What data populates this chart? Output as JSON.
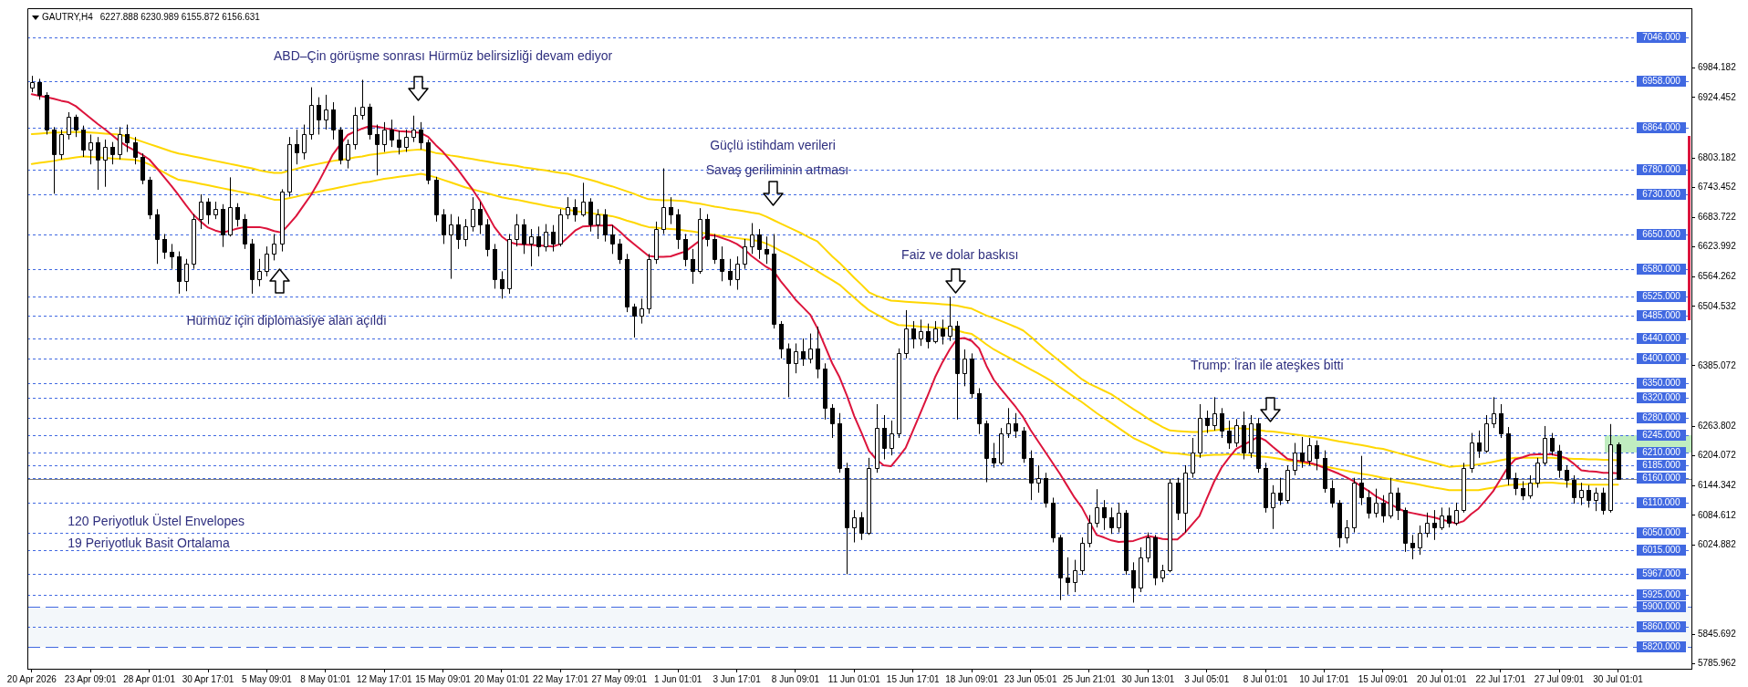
{
  "chart_data": {
    "type": "candlestick",
    "title": "GAUTRY,H4",
    "subtitle": "6227.888 6230.989 6155.872 6156.631",
    "categories": [
      "20 Apr 2026",
      null,
      null,
      null,
      null,
      null,
      null,
      null,
      "23 Apr 09:01",
      null,
      null,
      null,
      null,
      null,
      null,
      null,
      "28 Apr 01:01",
      null,
      null,
      null,
      null,
      null,
      null,
      null,
      "30 Apr 17:01",
      null,
      null,
      null,
      null,
      null,
      null,
      null,
      "5 May 09:01",
      null,
      null,
      null,
      null,
      null,
      null,
      null,
      "8 May 01:01",
      null,
      null,
      null,
      null,
      null,
      null,
      null,
      "12 May 17:01",
      null,
      null,
      null,
      null,
      null,
      null,
      null,
      "15 May 09:01",
      null,
      null,
      null,
      null,
      null,
      null,
      null,
      "20 May 01:01",
      null,
      null,
      null,
      null,
      null,
      null,
      null,
      "22 May 17:01",
      null,
      null,
      null,
      null,
      null,
      null,
      null,
      "27 May 09:01",
      null,
      null,
      null,
      null,
      null,
      null,
      null,
      "1 Jun 01:01",
      null,
      null,
      null,
      null,
      null,
      null,
      null,
      "3 Jun 17:01",
      null,
      null,
      null,
      null,
      null,
      null,
      null,
      "8 Jun 09:01",
      null,
      null,
      null,
      null,
      null,
      null,
      null,
      "11 Jun 01:01",
      null,
      null,
      null,
      null,
      null,
      null,
      null,
      "15 Jun 17:01",
      null,
      null,
      null,
      null,
      null,
      null,
      null,
      "18 Jun 09:01",
      null,
      null,
      null,
      null,
      null,
      null,
      null,
      "23 Jun 05:01",
      null,
      null,
      null,
      null,
      null,
      null,
      null,
      "25 Jun 21:01",
      null,
      null,
      null,
      null,
      null,
      null,
      null,
      "30 Jun 13:01",
      null,
      null,
      null,
      null,
      null,
      null,
      null,
      "3 Jul 05:01",
      null,
      null,
      null,
      null,
      null,
      null,
      null,
      "8 Jul 01:01",
      null,
      null,
      null,
      null,
      null,
      null,
      null,
      "10 Jul 17:01",
      null,
      null,
      null,
      null,
      null,
      null,
      null,
      "15 Jul 09:01",
      null,
      null,
      null,
      null,
      null,
      null,
      null,
      "20 Jul 01:01",
      null,
      null,
      null,
      null,
      null,
      null,
      null,
      "22 Jul 17:01",
      null,
      null,
      null,
      null,
      null,
      null,
      null,
      "27 Jul 09:01",
      null,
      null,
      null,
      null,
      null,
      null,
      null,
      "30 Jul 01:01"
    ],
    "ohlc": [
      [
        6945,
        6968,
        6935,
        6955
      ],
      [
        6955,
        6962,
        6920,
        6930
      ],
      [
        6930,
        6935,
        6850,
        6860
      ],
      [
        6860,
        6865,
        6731,
        6810
      ],
      [
        6810,
        6860,
        6800,
        6850
      ],
      [
        6850,
        6895,
        6840,
        6885
      ],
      [
        6885,
        6890,
        6845,
        6860
      ],
      [
        6860,
        6868,
        6805,
        6820
      ],
      [
        6820,
        6850,
        6790,
        6835
      ],
      [
        6835,
        6845,
        6739,
        6800
      ],
      [
        6800,
        6840,
        6745,
        6825
      ],
      [
        6825,
        6835,
        6790,
        6810
      ],
      [
        6810,
        6865,
        6800,
        6850
      ],
      [
        6850,
        6870,
        6815,
        6835
      ],
      [
        6835,
        6845,
        6790,
        6805
      ],
      [
        6805,
        6812,
        6750,
        6760
      ],
      [
        6760,
        6765,
        6680,
        6690
      ],
      [
        6690,
        6700,
        6590,
        6640
      ],
      [
        6640,
        6650,
        6600,
        6615
      ],
      [
        6615,
        6630,
        6580,
        6605
      ],
      [
        6605,
        6615,
        6530,
        6555
      ],
      [
        6555,
        6600,
        6535,
        6590
      ],
      [
        6590,
        6690,
        6580,
        6680
      ],
      [
        6680,
        6730,
        6660,
        6715
      ],
      [
        6715,
        6722,
        6670,
        6690
      ],
      [
        6690,
        6715,
        6680,
        6700
      ],
      [
        6700,
        6710,
        6624,
        6650
      ],
      [
        6650,
        6764,
        6645,
        6705
      ],
      [
        6705,
        6712,
        6665,
        6680
      ],
      [
        6680,
        6690,
        6620,
        6630
      ],
      [
        6630,
        6640,
        6530,
        6560
      ],
      [
        6560,
        6600,
        6545,
        6575
      ],
      [
        6575,
        6625,
        6565,
        6610
      ],
      [
        6610,
        6650,
        6597,
        6630
      ],
      [
        6630,
        6740,
        6615,
        6735
      ],
      [
        6735,
        6845,
        6725,
        6830
      ],
      [
        6830,
        6860,
        6790,
        6815
      ],
      [
        6815,
        6870,
        6800,
        6850
      ],
      [
        6850,
        6945,
        6840,
        6910
      ],
      [
        6910,
        6925,
        6850,
        6880
      ],
      [
        6880,
        6930,
        6860,
        6900
      ],
      [
        6900,
        6915,
        6840,
        6860
      ],
      [
        6860,
        6865,
        6790,
        6800
      ],
      [
        6800,
        6840,
        6782,
        6830
      ],
      [
        6830,
        6905,
        6820,
        6890
      ],
      [
        6890,
        6960,
        6880,
        6905
      ],
      [
        6905,
        6912,
        6840,
        6850
      ],
      [
        6850,
        6870,
        6768,
        6830
      ],
      [
        6830,
        6875,
        6815,
        6860
      ],
      [
        6860,
        6880,
        6825,
        6840
      ],
      [
        6840,
        6858,
        6810,
        6825
      ],
      [
        6825,
        6860,
        6815,
        6845
      ],
      [
        6845,
        6888,
        6835,
        6860
      ],
      [
        6860,
        6875,
        6820,
        6835
      ],
      [
        6835,
        6840,
        6750,
        6760
      ],
      [
        6760,
        6765,
        6675,
        6690
      ],
      [
        6690,
        6700,
        6630,
        6650
      ],
      [
        6650,
        6690,
        6560,
        6670
      ],
      [
        6670,
        6685,
        6620,
        6640
      ],
      [
        6640,
        6680,
        6625,
        6665
      ],
      [
        6665,
        6724,
        6655,
        6700
      ],
      [
        6700,
        6715,
        6650,
        6670
      ],
      [
        6670,
        6680,
        6605,
        6620
      ],
      [
        6620,
        6630,
        6540,
        6560
      ],
      [
        6560,
        6575,
        6520,
        6540
      ],
      [
        6540,
        6650,
        6530,
        6640
      ],
      [
        6640,
        6690,
        6625,
        6670
      ],
      [
        6670,
        6680,
        6610,
        6630
      ],
      [
        6630,
        6660,
        6585,
        6645
      ],
      [
        6645,
        6665,
        6605,
        6625
      ],
      [
        6625,
        6670,
        6615,
        6655
      ],
      [
        6655,
        6668,
        6615,
        6630
      ],
      [
        6630,
        6700,
        6625,
        6690
      ],
      [
        6690,
        6724,
        6680,
        6705
      ],
      [
        6705,
        6720,
        6675,
        6690
      ],
      [
        6690,
        6753,
        6685,
        6715
      ],
      [
        6715,
        6722,
        6655,
        6670
      ],
      [
        6670,
        6700,
        6640,
        6690
      ],
      [
        6690,
        6700,
        6635,
        6650
      ],
      [
        6650,
        6668,
        6610,
        6630
      ],
      [
        6630,
        6640,
        6590,
        6600
      ],
      [
        6600,
        6610,
        6493,
        6505
      ],
      [
        6505,
        6510,
        6442,
        6485
      ],
      [
        6485,
        6520,
        6470,
        6500
      ],
      [
        6500,
        6610,
        6490,
        6600
      ],
      [
        6600,
        6675,
        6590,
        6660
      ],
      [
        6660,
        6782,
        6650,
        6705
      ],
      [
        6705,
        6724,
        6670,
        6690
      ],
      [
        6690,
        6700,
        6620,
        6640
      ],
      [
        6640,
        6650,
        6585,
        6600
      ],
      [
        6600,
        6620,
        6550,
        6575
      ],
      [
        6575,
        6702,
        6570,
        6680
      ],
      [
        6680,
        6690,
        6625,
        6640
      ],
      [
        6640,
        6650,
        6590,
        6600
      ],
      [
        6600,
        6625,
        6555,
        6575
      ],
      [
        6575,
        6600,
        6546,
        6560
      ],
      [
        6560,
        6605,
        6538,
        6590
      ],
      [
        6590,
        6640,
        6580,
        6625
      ],
      [
        6625,
        6672,
        6610,
        6650
      ],
      [
        6650,
        6660,
        6600,
        6620
      ],
      [
        6620,
        6645,
        6590,
        6610
      ],
      [
        6610,
        6650,
        6460,
        6470
      ],
      [
        6470,
        6475,
        6400,
        6420
      ],
      [
        6420,
        6430,
        6322,
        6390
      ],
      [
        6390,
        6430,
        6370,
        6415
      ],
      [
        6415,
        6440,
        6385,
        6400
      ],
      [
        6400,
        6450,
        6390,
        6420
      ],
      [
        6420,
        6464,
        6360,
        6380
      ],
      [
        6380,
        6390,
        6277,
        6300
      ],
      [
        6300,
        6308,
        6240,
        6270
      ],
      [
        6270,
        6290,
        6170,
        6180
      ],
      [
        6180,
        6190,
        5966,
        6060
      ],
      [
        6060,
        6095,
        6030,
        6080
      ],
      [
        6080,
        6091,
        6035,
        6050
      ],
      [
        6050,
        6200,
        6045,
        6180
      ],
      [
        6180,
        6308,
        6170,
        6260
      ],
      [
        6260,
        6286,
        6197,
        6220
      ],
      [
        6220,
        6275,
        6205,
        6250
      ],
      [
        6250,
        6420,
        6240,
        6410
      ],
      [
        6410,
        6497,
        6400,
        6460
      ],
      [
        6460,
        6475,
        6420,
        6440
      ],
      [
        6440,
        6478,
        6425,
        6455
      ],
      [
        6455,
        6470,
        6420,
        6435
      ],
      [
        6435,
        6475,
        6430,
        6460
      ],
      [
        6460,
        6478,
        6428,
        6445
      ],
      [
        6445,
        6524,
        6435,
        6465
      ],
      [
        6465,
        6475,
        6277,
        6370
      ],
      [
        6370,
        6418,
        6344,
        6400
      ],
      [
        6400,
        6410,
        6320,
        6330
      ],
      [
        6330,
        6340,
        6248,
        6270
      ],
      [
        6270,
        6275,
        6151,
        6200
      ],
      [
        6200,
        6230,
        6180,
        6190
      ],
      [
        6190,
        6260,
        6185,
        6250
      ],
      [
        6250,
        6300,
        6240,
        6270
      ],
      [
        6270,
        6290,
        6240,
        6255
      ],
      [
        6255,
        6262,
        6190,
        6200
      ],
      [
        6200,
        6215,
        6115,
        6150
      ],
      [
        6150,
        6185,
        6130,
        6160
      ],
      [
        6160,
        6170,
        6100,
        6110
      ],
      [
        6110,
        6120,
        6030,
        6040
      ],
      [
        6040,
        6045,
        5914,
        5960
      ],
      [
        5960,
        6000,
        5925,
        5950
      ],
      [
        5950,
        5995,
        5930,
        5975
      ],
      [
        5975,
        6040,
        5965,
        6030
      ],
      [
        6030,
        6085,
        6020,
        6070
      ],
      [
        6070,
        6137,
        6060,
        6100
      ],
      [
        6100,
        6115,
        6055,
        6080
      ],
      [
        6080,
        6100,
        6047,
        6060
      ],
      [
        6060,
        6110,
        6050,
        6090
      ],
      [
        6090,
        6095,
        5965,
        5975
      ],
      [
        5975,
        5990,
        5909,
        5940
      ],
      [
        5940,
        6020,
        5930,
        6000
      ],
      [
        6000,
        6050,
        5990,
        6040
      ],
      [
        6040,
        6045,
        5944,
        5960
      ],
      [
        5960,
        5985,
        5950,
        5975
      ],
      [
        5975,
        6158,
        5970,
        6150
      ],
      [
        6150,
        6160,
        6075,
        6090
      ],
      [
        6090,
        6185,
        6050,
        6170
      ],
      [
        6170,
        6240,
        6160,
        6210
      ],
      [
        6210,
        6308,
        6200,
        6280
      ],
      [
        6280,
        6295,
        6250,
        6265
      ],
      [
        6265,
        6322,
        6255,
        6290
      ],
      [
        6290,
        6300,
        6240,
        6255
      ],
      [
        6255,
        6275,
        6218,
        6230
      ],
      [
        6230,
        6278,
        6222,
        6265
      ],
      [
        6265,
        6293,
        6197,
        6210
      ],
      [
        6210,
        6286,
        6200,
        6270
      ],
      [
        6270,
        6280,
        6170,
        6180
      ],
      [
        6180,
        6190,
        6090,
        6100
      ],
      [
        6100,
        6145,
        6057,
        6130
      ],
      [
        6130,
        6160,
        6105,
        6115
      ],
      [
        6115,
        6185,
        6108,
        6175
      ],
      [
        6175,
        6230,
        6165,
        6210
      ],
      [
        6210,
        6242,
        6180,
        6195
      ],
      [
        6195,
        6240,
        6185,
        6225
      ],
      [
        6225,
        6235,
        6175,
        6200
      ],
      [
        6200,
        6215,
        6130,
        6140
      ],
      [
        6140,
        6155,
        6100,
        6110
      ],
      [
        6110,
        6115,
        6020,
        6040
      ],
      [
        6040,
        6075,
        6028,
        6060
      ],
      [
        6060,
        6160,
        6050,
        6150
      ],
      [
        6150,
        6204,
        6105,
        6120
      ],
      [
        6120,
        6135,
        6078,
        6090
      ],
      [
        6090,
        6138,
        6080,
        6110
      ],
      [
        6110,
        6125,
        6070,
        6085
      ],
      [
        6085,
        6160,
        6078,
        6130
      ],
      [
        6130,
        6140,
        6075,
        6095
      ],
      [
        6095,
        6100,
        6011,
        6030
      ],
      [
        6030,
        6045,
        5996,
        6020
      ],
      [
        6020,
        6064,
        6005,
        6050
      ],
      [
        6050,
        6090,
        6040,
        6070
      ],
      [
        6070,
        6095,
        6035,
        6060
      ],
      [
        6060,
        6100,
        6055,
        6085
      ],
      [
        6085,
        6100,
        6060,
        6070
      ],
      [
        6070,
        6110,
        6064,
        6095
      ],
      [
        6095,
        6190,
        6090,
        6180
      ],
      [
        6180,
        6250,
        6170,
        6230
      ],
      [
        6230,
        6255,
        6200,
        6215
      ],
      [
        6215,
        6286,
        6210,
        6270
      ],
      [
        6270,
        6322,
        6260,
        6290
      ],
      [
        6290,
        6308,
        6240,
        6250
      ],
      [
        6250,
        6262,
        6145,
        6160
      ],
      [
        6160,
        6170,
        6125,
        6140
      ],
      [
        6140,
        6153,
        6115,
        6125
      ],
      [
        6125,
        6165,
        6118,
        6150
      ],
      [
        6150,
        6200,
        6140,
        6190
      ],
      [
        6190,
        6264,
        6185,
        6240
      ],
      [
        6240,
        6250,
        6205,
        6215
      ],
      [
        6215,
        6226,
        6160,
        6175
      ],
      [
        6175,
        6185,
        6140,
        6155
      ],
      [
        6155,
        6165,
        6108,
        6120
      ],
      [
        6120,
        6150,
        6105,
        6135
      ],
      [
        6135,
        6145,
        6100,
        6115
      ],
      [
        6115,
        6140,
        6093,
        6130
      ],
      [
        6130,
        6140,
        6086,
        6095
      ],
      [
        6095,
        6268,
        6090,
        6228
      ],
      [
        6227.888,
        6230.989,
        6155.872,
        6156.631
      ]
    ],
    "colors": [
      "#ffffff",
      "#000000",
      "#000000",
      "#000000",
      "#ffffff",
      "#ffffff",
      "#000000",
      "#000000",
      "#ffffff",
      "#000000",
      "#ffffff",
      "#000000",
      "#ffffff",
      "#000000",
      "#000000",
      "#000000",
      "#000000",
      "#000000",
      "#000000",
      "#000000",
      "#000000",
      "#ffffff",
      "#ffffff",
      "#ffffff",
      "#000000",
      "#ffffff",
      "#000000",
      "#ffffff",
      "#000000",
      "#000000",
      "#000000",
      "#ffffff",
      "#ffffff",
      "#ffffff",
      "#ffffff",
      "#ffffff",
      "#000000",
      "#ffffff",
      "#ffffff",
      "#000000",
      "#ffffff",
      "#000000",
      "#000000",
      "#ffffff",
      "#ffffff",
      "#ffffff",
      "#000000",
      "#000000",
      "#ffffff",
      "#000000",
      "#000000",
      "#ffffff",
      "#ffffff",
      "#000000",
      "#000000",
      "#000000",
      "#000000",
      "#ffffff",
      "#000000",
      "#ffffff",
      "#ffffff",
      "#000000",
      "#000000",
      "#000000",
      "#000000",
      "#ffffff",
      "#ffffff",
      "#000000",
      "#ffffff",
      "#000000",
      "#ffffff",
      "#000000",
      "#ffffff",
      "#ffffff",
      "#000000",
      "#ffffff",
      "#000000",
      "#ffffff",
      "#000000",
      "#000000",
      "#000000",
      "#000000",
      "#000000",
      "#ffffff",
      "#ffffff",
      "#ffffff",
      "#ffffff",
      "#000000",
      "#000000",
      "#000000",
      "#000000",
      "#ffffff",
      "#000000",
      "#000000",
      "#000000",
      "#000000",
      "#ffffff",
      "#ffffff",
      "#ffffff",
      "#000000",
      "#000000",
      "#000000",
      "#000000",
      "#000000",
      "#ffffff",
      "#000000",
      "#ffffff",
      "#000000",
      "#000000",
      "#000000",
      "#000000",
      "#000000",
      "#ffffff",
      "#000000",
      "#ffffff",
      "#ffffff",
      "#000000",
      "#ffffff",
      "#ffffff",
      "#ffffff",
      "#000000",
      "#ffffff",
      "#000000",
      "#ffffff",
      "#000000",
      "#ffffff",
      "#000000",
      "#ffffff",
      "#000000",
      "#000000",
      "#000000",
      "#000000",
      "#ffffff",
      "#ffffff",
      "#000000",
      "#000000",
      "#000000",
      "#ffffff",
      "#000000",
      "#000000",
      "#000000",
      "#000000",
      "#ffffff",
      "#ffffff",
      "#ffffff",
      "#ffffff",
      "#000000",
      "#000000",
      "#ffffff",
      "#000000",
      "#000000",
      "#ffffff",
      "#ffffff",
      "#000000",
      "#ffffff",
      "#ffffff",
      "#000000",
      "#ffffff",
      "#ffffff",
      "#ffffff",
      "#000000",
      "#ffffff",
      "#000000",
      "#000000",
      "#ffffff",
      "#000000",
      "#ffffff",
      "#000000",
      "#000000",
      "#ffffff",
      "#000000",
      "#ffffff",
      "#ffffff",
      "#000000",
      "#ffffff",
      "#000000",
      "#000000",
      "#000000",
      "#000000",
      "#ffffff",
      "#ffffff",
      "#000000",
      "#000000",
      "#ffffff",
      "#000000",
      "#ffffff",
      "#000000",
      "#000000",
      "#000000",
      "#ffffff",
      "#ffffff",
      "#000000",
      "#ffffff",
      "#000000",
      "#ffffff",
      "#ffffff",
      "#ffffff",
      "#000000",
      "#ffffff",
      "#ffffff",
      "#000000",
      "#000000",
      "#000000",
      "#000000",
      "#ffffff",
      "#ffffff",
      "#ffffff",
      "#000000",
      "#000000",
      "#000000",
      "#000000",
      "#ffffff",
      "#000000",
      "#ffffff",
      "#000000",
      "#ffffff",
      "#000000"
    ],
    "series": [
      {
        "type": "line",
        "color": "#dc143c",
        "values": [
          6931,
          6928,
          6925,
          6922,
          6918,
          6915,
          6907,
          6895,
          6883,
          6871,
          6860,
          6848,
          6836,
          6826,
          6818,
          6810,
          6800,
          6783,
          6765,
          6747,
          6728,
          6708,
          6689,
          6675,
          6663,
          6657,
          6653,
          6657,
          6661,
          6664,
          6664,
          6664,
          6661,
          6656,
          6653,
          6669,
          6686,
          6707,
          6728,
          6753,
          6781,
          6810,
          6830,
          6849,
          6856,
          6862,
          6867,
          6866,
          6863,
          6860,
          6857,
          6856,
          6855,
          6853,
          6845,
          6829,
          6815,
          6798,
          6780,
          6760,
          6740,
          6718,
          6691,
          6664,
          6645,
          6634,
          6630,
          6629,
          6628,
          6627,
          6626,
          6625,
          6630,
          6643,
          6657,
          6665,
          6666,
          6667,
          6667,
          6668,
          6656,
          6642,
          6630,
          6618,
          6606,
          6604,
          6604,
          6605,
          6610,
          6615,
          6626,
          6637,
          6648,
          6647,
          6642,
          6637,
          6630,
          6620,
          6606,
          6595,
          6584,
          6576,
          6555,
          6537,
          6518,
          6503,
          6488,
          6460,
          6425,
          6390,
          6362,
          6325,
          6284,
          6250,
          6214,
          6197,
          6185,
          6183,
          6201,
          6220,
          6255,
          6290,
          6325,
          6362,
          6392,
          6418,
          6439,
          6441,
          6435,
          6420,
          6385,
          6357,
          6338,
          6320,
          6302,
          6282,
          6256,
          6234,
          6212,
          6190,
          6168,
          6144,
          6120,
          6100,
          6072,
          6045,
          6040,
          6034,
          6031,
          6032,
          6033,
          6038,
          6043,
          6040,
          6037,
          6036,
          6036,
          6049,
          6066,
          6083,
          6118,
          6152,
          6180,
          6200,
          6218,
          6226,
          6234,
          6242,
          6235,
          6222,
          6210,
          6198,
          6195,
          6193,
          6190,
          6186,
          6180,
          6174,
          6168,
          6161,
          6153,
          6143,
          6134,
          6123,
          6115,
          6107,
          6099,
          6092,
          6089,
          6086,
          6083,
          6080,
          6076,
          6072,
          6068,
          6073,
          6087,
          6098,
          6115,
          6133,
          6157,
          6181,
          6197,
          6201,
          6206,
          6207,
          6207,
          6207,
          6204,
          6199,
          6188,
          6175,
          6173,
          6172,
          6170,
          6170,
          6169
        ]
      },
      {
        "type": "line",
        "color": "#ffd700",
        "values": [
          6851,
          6852,
          6853,
          6854,
          6854,
          6855,
          6855,
          6855,
          6854,
          6853,
          6852,
          6851,
          6850,
          6846,
          6841,
          6836,
          6831,
          6826,
          6821,
          6816,
          6812,
          6809,
          6806,
          6803,
          6800,
          6797,
          6794,
          6791,
          6788,
          6785,
          6782,
          6778,
          6775,
          6773,
          6773,
          6777,
          6781,
          6785,
          6788,
          6791,
          6794,
          6797,
          6799,
          6801,
          6804,
          6806,
          6809,
          6811,
          6813,
          6815,
          6816,
          6818,
          6819,
          6820,
          6817,
          6813,
          6811,
          6808,
          6806,
          6803,
          6801,
          6798,
          6796,
          6793,
          6791,
          6789,
          6787,
          6784,
          6782,
          6780,
          6778,
          6775,
          6773,
          6771,
          6767,
          6763,
          6759,
          6755,
          6750,
          6746,
          6741,
          6736,
          6731,
          6725,
          6720,
          6719,
          6718,
          6718,
          6717,
          6716,
          6713,
          6711,
          6708,
          6705,
          6703,
          6700,
          6698,
          6696,
          6693,
          6691,
          6685,
          6678,
          6671,
          6664,
          6657,
          6650,
          6642,
          6635,
          6620,
          6605,
          6592,
          6577,
          6562,
          6548,
          6533,
          6526,
          6521,
          6516,
          6515,
          6514,
          6513,
          6512,
          6511,
          6510,
          6509,
          6508,
          6506,
          6503,
          6500,
          6493,
          6486,
          6481,
          6475,
          6469,
          6463,
          6456,
          6444,
          6431,
          6418,
          6406,
          6394,
          6382,
          6370,
          6358,
          6349,
          6342,
          6335,
          6328,
          6318,
          6308,
          6298,
          6289,
          6279,
          6270,
          6262,
          6255,
          6254,
          6253,
          6252,
          6252,
          6254,
          6255,
          6257,
          6259,
          6260,
          6259,
          6258,
          6256,
          6254,
          6253,
          6251,
          6249,
          6247,
          6245,
          6243,
          6241,
          6239,
          6236,
          6233,
          6231,
          6228,
          6226,
          6223,
          6220,
          6218,
          6214,
          6210,
          6206,
          6202,
          6198,
          6194,
          6190,
          6186,
          6182,
          6183,
          6184,
          6185,
          6187,
          6189,
          6192,
          6195,
          6198,
          6200,
          6200,
          6200,
          6200,
          6200,
          6200,
          6199,
          6199,
          6198,
          6198,
          6197,
          6197,
          6196,
          6196,
          6195
        ]
      },
      {
        "type": "line",
        "color": "#ffd700",
        "values": [
          6791,
          6793,
          6795,
          6797,
          6800,
          6802,
          6804,
          6806,
          6805,
          6804,
          6803,
          6802,
          6801,
          6800,
          6799,
          6796,
          6790,
          6782,
          6774,
          6766,
          6759,
          6757,
          6754,
          6751,
          6748,
          6745,
          6742,
          6739,
          6736,
          6733,
          6730,
          6727,
          6723,
          6719,
          6719,
          6722,
          6725,
          6729,
          6732,
          6735,
          6738,
          6741,
          6744,
          6747,
          6750,
          6753,
          6755,
          6758,
          6761,
          6763,
          6765,
          6767,
          6769,
          6771,
          6768,
          6764,
          6759,
          6754,
          6749,
          6744,
          6740,
          6736,
          6732,
          6728,
          6724,
          6721,
          6719,
          6716,
          6713,
          6710,
          6707,
          6704,
          6702,
          6699,
          6696,
          6694,
          6692,
          6690,
          6688,
          6686,
          6682,
          6677,
          6673,
          6668,
          6664,
          6663,
          6661,
          6660,
          6659,
          6657,
          6655,
          6653,
          6651,
          6648,
          6646,
          6644,
          6642,
          6640,
          6638,
          6636,
          6631,
          6624,
          6616,
          6609,
          6601,
          6593,
          6584,
          6575,
          6566,
          6557,
          6548,
          6535,
          6522,
          6509,
          6497,
          6489,
          6481,
          6473,
          6467,
          6466,
          6465,
          6464,
          6463,
          6462,
          6461,
          6460,
          6456,
          6452,
          6449,
          6439,
          6428,
          6418,
          6410,
          6402,
          6394,
          6386,
          6378,
          6370,
          6362,
          6353,
          6342,
          6332,
          6322,
          6312,
          6301,
          6290,
          6280,
          6270,
          6260,
          6250,
          6240,
          6233,
          6226,
          6219,
          6212,
          6210,
          6209,
          6207,
          6205,
          6204,
          6205,
          6206,
          6206,
          6207,
          6207,
          6206,
          6205,
          6203,
          6202,
          6200,
          6198,
          6195,
          6193,
          6190,
          6188,
          6185,
          6183,
          6180,
          6177,
          6174,
          6171,
          6168,
          6166,
          6163,
          6160,
          6157,
          6154,
          6151,
          6149,
          6146,
          6143,
          6140,
          6138,
          6135,
          6135,
          6135,
          6135,
          6135,
          6138,
          6140,
          6143,
          6145,
          6146,
          6147,
          6148,
          6149,
          6150,
          6150,
          6149,
          6148,
          6147,
          6147,
          6146,
          6146,
          6146,
          6146,
          6146
        ]
      }
    ],
    "ylim": [
      5776,
      7104
    ],
    "yticks": [
      5785.962,
      5845.692,
      6024.882,
      6084.612,
      6144.342,
      6204.072,
      6263.802,
      6385.072,
      6504.532,
      6564.262,
      6623.992,
      6683.722,
      6743.452,
      6803.182,
      6924.452,
      6984.182
    ],
    "ref_lines": [
      {
        "axis": "y",
        "value": 7046,
        "label": "7046.000",
        "color": "#4169e1",
        "line_style": "dotted"
      },
      {
        "axis": "y",
        "value": 6958,
        "label": "6958.000",
        "color": "#4169e1",
        "line_style": "dotted"
      },
      {
        "axis": "y",
        "value": 6864,
        "label": "6864.000",
        "color": "#4169e1",
        "line_style": "dotted"
      },
      {
        "axis": "y",
        "value": 6780,
        "label": "6780.000",
        "color": "#4169e1",
        "line_style": "dotted"
      },
      {
        "axis": "y",
        "value": 6730,
        "label": "6730.000",
        "color": "#4169e1",
        "line_style": "dotted"
      },
      {
        "axis": "y",
        "value": 6650,
        "label": "6650.000",
        "color": "#4169e1",
        "line_style": "dotted"
      },
      {
        "axis": "y",
        "value": 6580,
        "label": "6580.000",
        "color": "#4169e1",
        "line_style": "dotted"
      },
      {
        "axis": "y",
        "value": 6525,
        "label": "6525.000",
        "color": "#4169e1",
        "line_style": "dotted"
      },
      {
        "axis": "y",
        "value": 6485,
        "label": "6485.000",
        "color": "#4169e1",
        "line_style": "dotted"
      },
      {
        "axis": "y",
        "value": 6440,
        "label": "6440.000",
        "color": "#4169e1",
        "line_style": "dotted"
      },
      {
        "axis": "y",
        "value": 6400,
        "label": "6400.000",
        "color": "#4169e1",
        "line_style": "dotted"
      },
      {
        "axis": "y",
        "value": 6350,
        "label": "6350.000",
        "color": "#4169e1",
        "line_style": "dotted"
      },
      {
        "axis": "y",
        "value": 6320,
        "label": "6320.000",
        "color": "#4169e1",
        "line_style": "dotted"
      },
      {
        "axis": "y",
        "value": 6280,
        "label": "6280.000",
        "color": "#4169e1",
        "line_style": "dotted"
      },
      {
        "axis": "y",
        "value": 6245,
        "label": "6245.000",
        "color": "#4169e1",
        "line_style": "dotted"
      },
      {
        "axis": "y",
        "value": 6210,
        "label": "6210.000",
        "color": "#4169e1",
        "line_style": "dotted"
      },
      {
        "axis": "y",
        "value": 6185,
        "label": "6185.000",
        "color": "#4169e1",
        "line_style": "dotted"
      },
      {
        "axis": "y",
        "value": 6160,
        "label": "6160.000",
        "color": "#4169e1",
        "line_style": "dotted"
      },
      {
        "axis": "y",
        "value": 6110,
        "label": "6110.000",
        "color": "#4169e1",
        "line_style": "dotted"
      },
      {
        "axis": "y",
        "value": 6050,
        "label": "6050.000",
        "color": "#4169e1",
        "line_style": "dotted"
      },
      {
        "axis": "y",
        "value": 6015,
        "label": "6015.000",
        "color": "#4169e1",
        "line_style": "dotted"
      },
      {
        "axis": "y",
        "value": 5967,
        "label": "5967.000",
        "color": "#4169e1",
        "line_style": "dotted"
      },
      {
        "axis": "y",
        "value": 5925,
        "label": "5925.000",
        "color": "#4169e1",
        "line_style": "dotted"
      },
      {
        "axis": "y",
        "value": 5900,
        "label": "5900.000",
        "color": "#4169e1",
        "line_style": "dashed"
      },
      {
        "axis": "y",
        "value": 5860,
        "label": "5860.000",
        "color": "#4169e1",
        "line_style": "dotted"
      },
      {
        "axis": "y",
        "value": 5820,
        "label": "5820.000",
        "color": "#4169e1",
        "line_style": "dashed"
      },
      {
        "axis": "y",
        "value": 6156.631,
        "color": "#808080",
        "line_style": "solid"
      }
    ],
    "bands": [
      {
        "axis": "y",
        "from": 5820,
        "to": 5900,
        "color": "#f3f7fa"
      }
    ],
    "annotations": [
      "ABD–Çin görüşme sonrası Hürmüz belirsizliği devam ediyor",
      "Hürmüz için diplomasiye alan açıldı",
      "Güçlü istihdam verileri",
      "Savaş geriliminin artması",
      "Faiz ve dolar baskısı",
      "Trump: İran ile ateşkes bitti",
      "120 Periyotluk Üstel Envelopes",
      "19 Periyotluk Basit Ortalama"
    ]
  }
}
